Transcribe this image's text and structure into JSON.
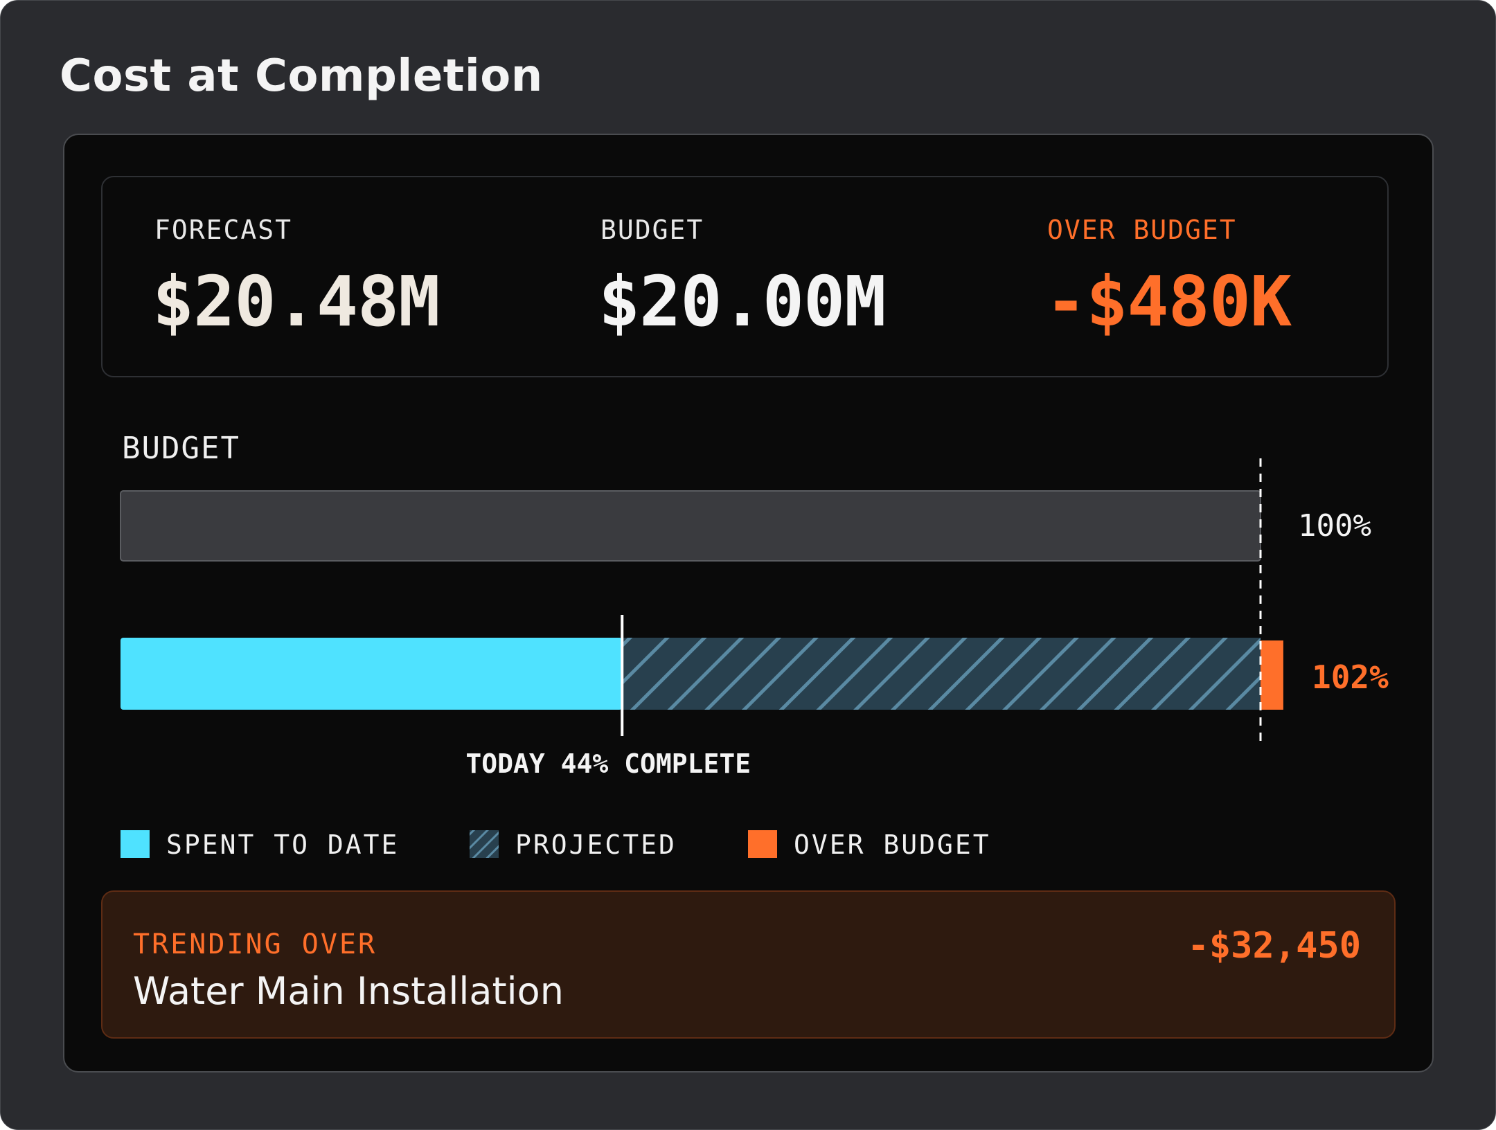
{
  "title": "Cost at Completion",
  "summary": {
    "forecast_label": "FORECAST",
    "forecast_value": "$20.48M",
    "budget_label": "BUDGET",
    "budget_value": "$20.00M",
    "over_label": "OVER BUDGET",
    "over_value": "-$480K"
  },
  "chart_data": {
    "type": "bar",
    "title": "BUDGET",
    "unit": "% of budget",
    "budget_bar": {
      "value": 100,
      "label": "100%"
    },
    "forecast_bar": {
      "spent_to_date": 44,
      "projected_end": 100,
      "over_budget_end": 102,
      "label": "102%"
    },
    "today_marker": {
      "value": 44,
      "label": "TODAY 44% COMPLETE"
    },
    "budget_line": {
      "value": 100
    },
    "legend": [
      {
        "name": "SPENT TO DATE",
        "swatch": "solid",
        "color": "#4fe2ff"
      },
      {
        "name": "PROJECTED",
        "swatch": "hatched",
        "color": "#28404e"
      },
      {
        "name": "OVER BUDGET",
        "swatch": "solid",
        "color": "#ff6f2a"
      }
    ]
  },
  "alert": {
    "tag": "TRENDING OVER",
    "item": "Water Main Installation",
    "amount": "-$32,450"
  },
  "colors": {
    "spent": "#4fe2ff",
    "projected_fill": "#28404e",
    "projected_hatch": "#5a8aa3",
    "over": "#ff6f2a",
    "budget_track": "#3a3b3f",
    "panel": "#0a0a0a",
    "frame": "#2a2b2f"
  }
}
